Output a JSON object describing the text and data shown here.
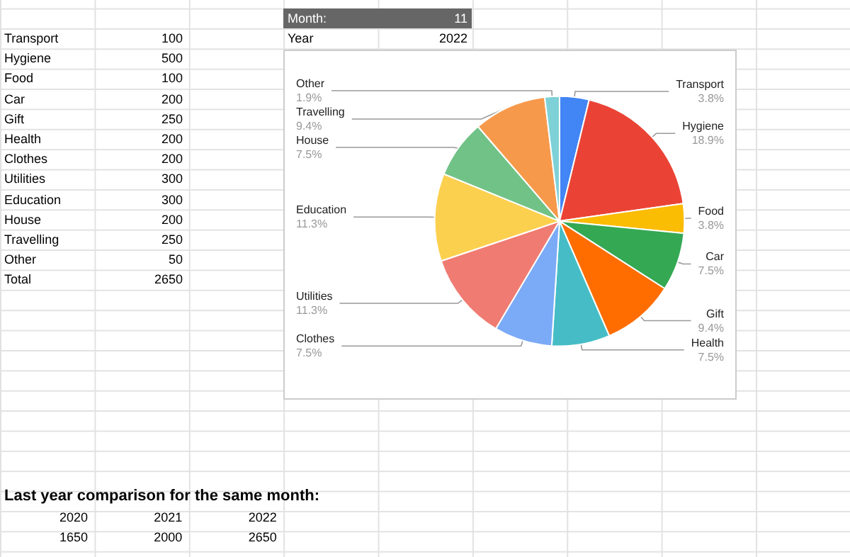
{
  "chart_data": {
    "type": "pie",
    "categories": [
      "Transport",
      "Hygiene",
      "Food",
      "Car",
      "Gift",
      "Health",
      "Clothes",
      "Utilities",
      "Education",
      "House",
      "Travelling",
      "Other"
    ],
    "values": [
      3.8,
      18.9,
      3.8,
      7.5,
      9.4,
      7.5,
      7.5,
      11.3,
      11.3,
      7.5,
      9.4,
      1.9
    ],
    "value_labels": [
      "3.8%",
      "18.9%",
      "3.8%",
      "7.5%",
      "9.4%",
      "7.5%",
      "7.5%",
      "11.3%",
      "11.3%",
      "7.5%",
      "9.4%",
      "1.9%"
    ],
    "colors": [
      "#4285f4",
      "#ea4335",
      "#fbbc04",
      "#34a853",
      "#ff6d01",
      "#46bdc6",
      "#7baaf7",
      "#f07b72",
      "#fcd04f",
      "#71c287",
      "#f7994b",
      "#7ed1d7"
    ],
    "legend": false,
    "annotations": [
      "Transport",
      "100",
      "Hygiene",
      "500",
      "Food",
      "100",
      "Car",
      "200",
      "Gift",
      "250",
      "Health",
      "200",
      "Clothes",
      "200",
      "Utilities",
      "300",
      "Education",
      "300",
      "House",
      "200",
      "Travelling",
      "250",
      "Other",
      "50",
      "Total",
      "2650",
      "Month:",
      "11",
      "Year",
      "2022",
      "Last year comparison for the same month:",
      "2020",
      "2021",
      "2022",
      "1650",
      "2000",
      "2650"
    ]
  }
}
